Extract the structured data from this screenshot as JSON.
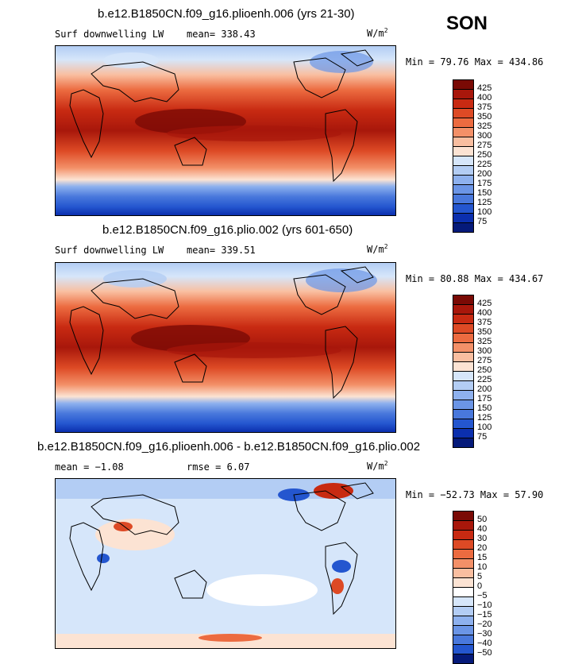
{
  "season": "SON",
  "panels": [
    {
      "title": "b.e12.B1850CN.f09_g16.plioenh.006 (yrs 21-30)",
      "left_label": "Surf downwelling LW",
      "mid_label": "mean= 338.43",
      "units": "W/m",
      "units_sup": "2",
      "minmax": "Min =  79.76 Max = 434.86",
      "legend_labels": [
        "425",
        "400",
        "375",
        "350",
        "325",
        "300",
        "275",
        "250",
        "225",
        "200",
        "175",
        "150",
        "125",
        "100",
        "75"
      ]
    },
    {
      "title": "b.e12.B1850CN.f09_g16.plio.002 (yrs 601-650)",
      "left_label": "Surf downwelling LW",
      "mid_label": "mean= 339.51",
      "units": "W/m",
      "units_sup": "2",
      "minmax": "Min =  80.88 Max = 434.67",
      "legend_labels": [
        "425",
        "400",
        "375",
        "350",
        "325",
        "300",
        "275",
        "250",
        "225",
        "200",
        "175",
        "150",
        "125",
        "100",
        "75"
      ]
    },
    {
      "title": "b.e12.B1850CN.f09_g16.plioenh.006 - b.e12.B1850CN.f09_g16.plio.002",
      "left_label": "mean =  −1.08",
      "mid_label": "rmse =   6.07",
      "units": "W/m",
      "units_sup": "2",
      "minmax": "Min = −52.73 Max =  57.90",
      "legend_labels": [
        "50",
        "40",
        "30",
        "20",
        "15",
        "10",
        "5",
        "0",
        "−5",
        "−10",
        "−15",
        "−20",
        "−30",
        "−40",
        "−50"
      ]
    }
  ],
  "colors": {
    "abs_scale": [
      "#7a0a05",
      "#a8170b",
      "#c82a12",
      "#dd4a25",
      "#ec6b40",
      "#f39068",
      "#f9bea0",
      "#fce3d3",
      "#d6e6fa",
      "#b3cdf4",
      "#8eb1ee",
      "#6b95e6",
      "#4978dc",
      "#2456cf",
      "#0b2fae",
      "#051a7a"
    ],
    "diff_scale": [
      "#7a0a05",
      "#a8170b",
      "#c82a12",
      "#dd4a25",
      "#ec6b40",
      "#f39068",
      "#f9bea0",
      "#fce3d3",
      "#ffffff",
      "#d6e6fa",
      "#b3cdf4",
      "#8eb1ee",
      "#6b95e6",
      "#4978dc",
      "#2456cf",
      "#051a7a"
    ]
  },
  "chart_data": [
    {
      "type": "heatmap",
      "title": "b.e12.B1850CN.f09_g16.plioenh.006 (yrs 21-30)",
      "variable": "Surf downwelling LW",
      "units": "W/m2",
      "mean": 338.43,
      "min": 79.76,
      "max": 434.86,
      "contour_levels": [
        75,
        100,
        125,
        150,
        175,
        200,
        225,
        250,
        275,
        300,
        325,
        350,
        375,
        400,
        425
      ],
      "projection": "global lat-lon, Pacific-centered"
    },
    {
      "type": "heatmap",
      "title": "b.e12.B1850CN.f09_g16.plio.002 (yrs 601-650)",
      "variable": "Surf downwelling LW",
      "units": "W/m2",
      "mean": 339.51,
      "min": 80.88,
      "max": 434.67,
      "contour_levels": [
        75,
        100,
        125,
        150,
        175,
        200,
        225,
        250,
        275,
        300,
        325,
        350,
        375,
        400,
        425
      ],
      "projection": "global lat-lon, Pacific-centered"
    },
    {
      "type": "heatmap",
      "title": "b.e12.B1850CN.f09_g16.plioenh.006 - b.e12.B1850CN.f09_g16.plio.002",
      "units": "W/m2",
      "mean": -1.08,
      "rmse": 6.07,
      "min": -52.73,
      "max": 57.9,
      "contour_levels": [
        -50,
        -40,
        -30,
        -20,
        -15,
        -10,
        -5,
        0,
        5,
        10,
        15,
        20,
        30,
        40,
        50
      ],
      "projection": "global lat-lon, Pacific-centered"
    }
  ]
}
